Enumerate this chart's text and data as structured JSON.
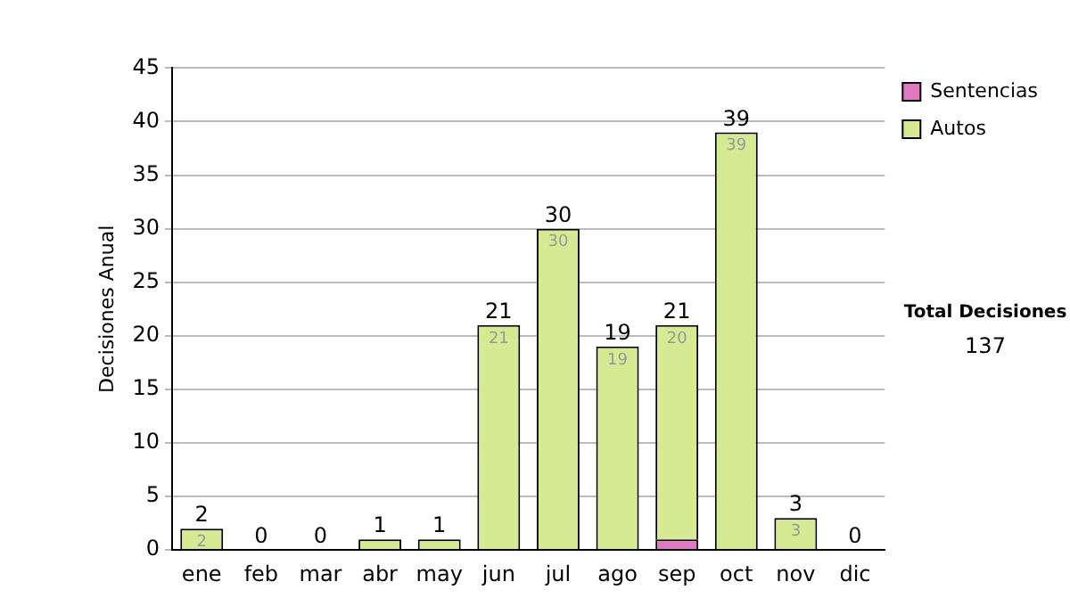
{
  "chart_data": {
    "type": "bar",
    "ylabel": "Decisiones Anual",
    "categories": [
      "ene",
      "feb",
      "mar",
      "abr",
      "may",
      "jun",
      "jul",
      "ago",
      "sep",
      "oct",
      "nov",
      "dic"
    ],
    "series": [
      {
        "name": "Sentencias",
        "color": "#e07ac0",
        "values": [
          0,
          0,
          0,
          0,
          0,
          0,
          0,
          0,
          1,
          0,
          0,
          0
        ]
      },
      {
        "name": "Autos",
        "color": "#d5ea93",
        "values": [
          2,
          0,
          0,
          1,
          1,
          21,
          30,
          19,
          20,
          39,
          3,
          0
        ],
        "value_labels": [
          "2",
          null,
          null,
          null,
          null,
          "21",
          "30",
          "19",
          "20",
          "39",
          "3",
          null
        ]
      }
    ],
    "stacked": true,
    "totals": [
      "2",
      "0",
      "0",
      "1",
      "1",
      "21",
      "30",
      "19",
      "21",
      "39",
      "3",
      "0"
    ],
    "ylim": [
      0,
      45
    ],
    "yticks": [
      0,
      5,
      10,
      15,
      20,
      25,
      30,
      35,
      40,
      45
    ],
    "grid": "y",
    "legend": "right",
    "annotations": [
      "Total Decisiones",
      "137"
    ]
  }
}
